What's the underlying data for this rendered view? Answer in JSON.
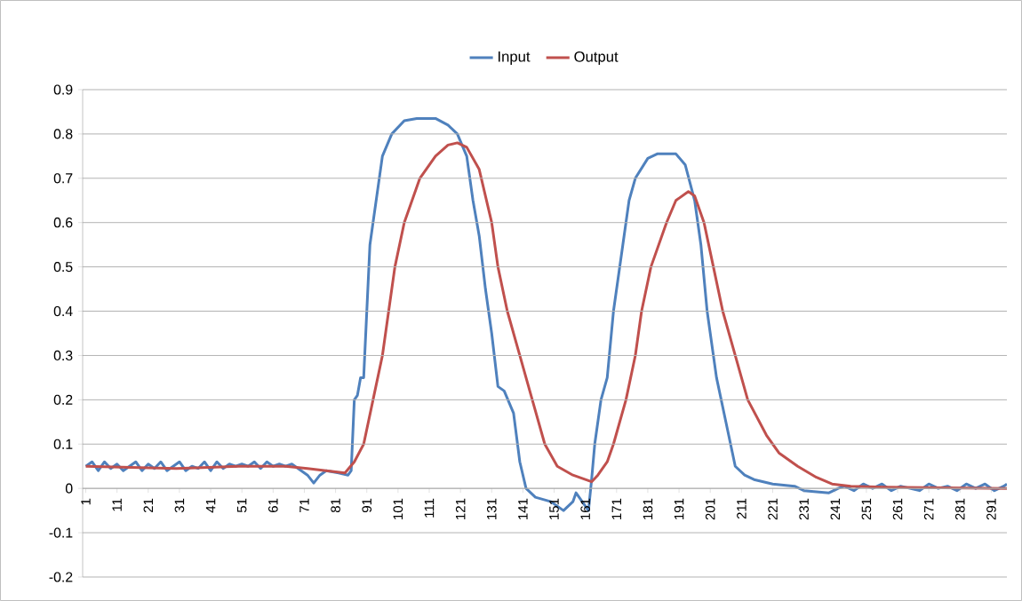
{
  "chart_data": {
    "type": "line",
    "xlim": [
      0,
      296
    ],
    "xticks": [
      1,
      11,
      21,
      31,
      41,
      51,
      61,
      71,
      81,
      91,
      101,
      111,
      121,
      131,
      141,
      151,
      161,
      171,
      181,
      191,
      201,
      211,
      221,
      231,
      241,
      251,
      261,
      271,
      281,
      291
    ],
    "ylim": [
      -0.2,
      0.9
    ],
    "yticks": [
      -0.2,
      -0.1,
      0,
      0.1,
      0.2,
      0.3,
      0.4,
      0.5,
      0.6,
      0.7,
      0.8,
      0.9
    ],
    "grid": "y",
    "legend": "top",
    "marker": "none",
    "line_style": "solid",
    "series": [
      {
        "name": "Input",
        "color": "#4f81bd",
        "x": [
          1,
          3,
          5,
          7,
          9,
          11,
          13,
          15,
          17,
          19,
          21,
          23,
          25,
          27,
          29,
          31,
          33,
          35,
          37,
          39,
          41,
          43,
          45,
          47,
          49,
          51,
          53,
          55,
          57,
          59,
          61,
          63,
          65,
          67,
          69,
          70,
          72,
          74,
          76,
          78,
          82,
          85,
          86,
          87,
          88,
          89,
          90,
          92,
          94,
          96,
          99,
          103,
          107,
          113,
          117,
          120,
          123,
          125,
          127,
          129,
          131,
          133,
          135,
          138,
          140,
          142,
          145,
          150,
          154,
          157,
          158,
          162,
          163,
          164,
          166,
          168,
          170,
          173,
          175,
          177,
          181,
          184,
          190,
          193,
          196,
          198,
          200,
          203,
          206,
          209,
          212,
          215,
          221,
          228,
          231,
          239,
          242,
          244,
          247,
          250,
          253,
          256,
          259,
          262,
          265,
          268,
          271,
          274,
          277,
          280,
          283,
          286,
          289,
          292,
          295,
          296
        ],
        "values": [
          0.05,
          0.06,
          0.04,
          0.06,
          0.045,
          0.055,
          0.04,
          0.05,
          0.06,
          0.04,
          0.055,
          0.045,
          0.06,
          0.04,
          0.05,
          0.06,
          0.04,
          0.05,
          0.045,
          0.06,
          0.04,
          0.06,
          0.045,
          0.055,
          0.05,
          0.055,
          0.05,
          0.06,
          0.045,
          0.06,
          0.05,
          0.055,
          0.05,
          0.055,
          0.045,
          0.04,
          0.03,
          0.012,
          0.03,
          0.04,
          0.035,
          0.03,
          0.04,
          0.2,
          0.21,
          0.25,
          0.25,
          0.55,
          0.65,
          0.75,
          0.8,
          0.83,
          0.835,
          0.835,
          0.82,
          0.8,
          0.75,
          0.65,
          0.57,
          0.45,
          0.35,
          0.23,
          0.22,
          0.17,
          0.06,
          0.0,
          -0.02,
          -0.03,
          -0.05,
          -0.03,
          -0.01,
          -0.05,
          0.02,
          0.1,
          0.2,
          0.25,
          0.4,
          0.55,
          0.65,
          0.7,
          0.745,
          0.755,
          0.755,
          0.73,
          0.65,
          0.55,
          0.4,
          0.25,
          0.15,
          0.05,
          0.03,
          0.02,
          0.01,
          0.005,
          -0.005,
          -0.01,
          0.0,
          0.005,
          -0.005,
          0.01,
          0.0,
          0.01,
          -0.005,
          0.005,
          0.0,
          -0.005,
          0.01,
          0.0,
          0.005,
          -0.005,
          0.01,
          0.0,
          0.01,
          -0.005,
          0.005,
          0.01
        ]
      },
      {
        "name": "Output",
        "color": "#c0504d",
        "x": [
          1,
          30,
          50,
          65,
          72,
          78,
          84,
          87,
          90,
          93,
          96,
          98,
          100,
          103,
          108,
          113,
          117,
          120,
          123,
          127,
          131,
          133,
          136,
          140,
          144,
          148,
          152,
          157,
          161,
          163,
          165,
          168,
          170,
          174,
          177,
          179,
          182,
          187,
          190,
          194,
          196,
          199,
          202,
          205,
          209,
          213,
          219,
          223,
          229,
          235,
          240,
          246,
          257,
          296
        ],
        "values": [
          0.05,
          0.045,
          0.05,
          0.05,
          0.045,
          0.04,
          0.035,
          0.06,
          0.1,
          0.2,
          0.3,
          0.4,
          0.5,
          0.6,
          0.7,
          0.75,
          0.775,
          0.78,
          0.77,
          0.72,
          0.6,
          0.5,
          0.4,
          0.3,
          0.2,
          0.1,
          0.05,
          0.03,
          0.02,
          0.015,
          0.03,
          0.06,
          0.1,
          0.2,
          0.3,
          0.4,
          0.5,
          0.6,
          0.65,
          0.67,
          0.66,
          0.6,
          0.5,
          0.4,
          0.3,
          0.2,
          0.12,
          0.08,
          0.05,
          0.025,
          0.01,
          0.005,
          0.003,
          0.0
        ]
      }
    ]
  }
}
